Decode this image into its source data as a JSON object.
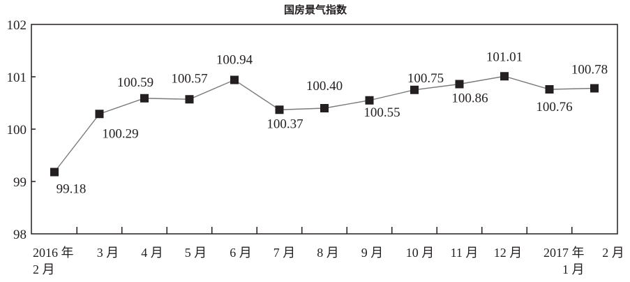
{
  "chart_data": {
    "type": "line",
    "title": "国房景气指数",
    "categories": [
      "2016 年\n2 月",
      "3 月",
      "4 月",
      "5 月",
      "6 月",
      "7 月",
      "8 月",
      "9 月",
      "10 月",
      "11 月",
      "12 月",
      "2017 年\n1 月",
      "2 月"
    ],
    "series": [
      {
        "values": [
          99.18,
          100.29,
          100.59,
          100.57,
          100.94,
          100.37,
          100.4,
          100.55,
          100.75,
          100.86,
          101.01,
          100.76,
          100.78
        ]
      }
    ],
    "xlabel": "",
    "ylabel": "",
    "ylim": [
      98,
      102
    ],
    "yticks": [
      98,
      99,
      100,
      101,
      102
    ],
    "grid": false,
    "legend": "none",
    "show_data_labels": true,
    "marker": "square",
    "colors": {
      "line": "#7a7a7a",
      "marker": "#231f20",
      "text": "#231f20"
    }
  }
}
